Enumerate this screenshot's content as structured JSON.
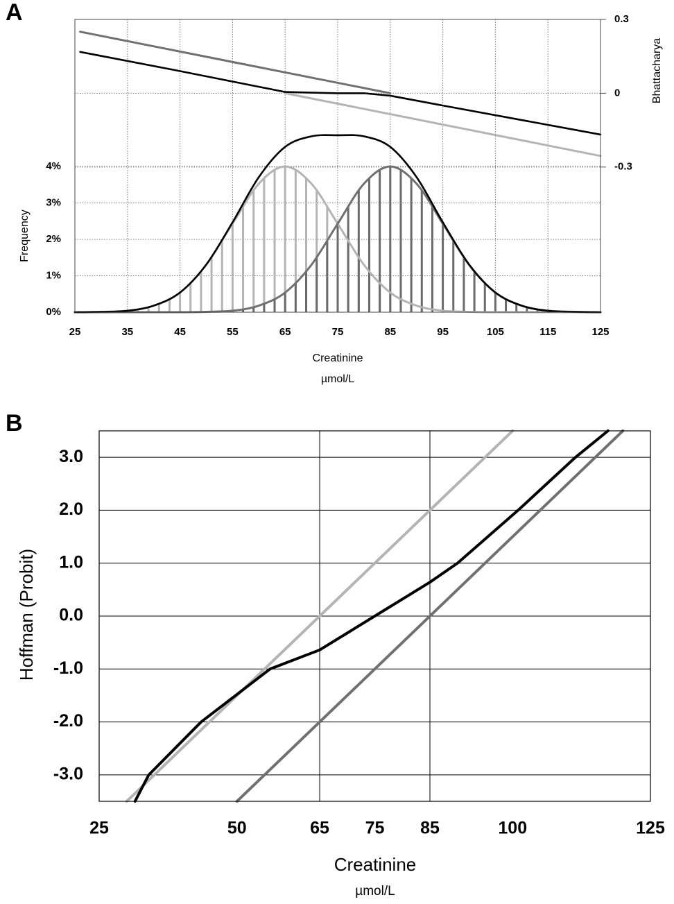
{
  "chart_data": [
    {
      "type": "distribution",
      "panel_label": "A",
      "xlabel": "Creatinine",
      "xunit": "µmol/L",
      "ylabel": "Frequency",
      "y2label": "Bhattacharya",
      "xlim": [
        25,
        125
      ],
      "xticks": [
        25,
        35,
        45,
        55,
        65,
        75,
        85,
        95,
        105,
        115,
        125
      ],
      "ylim": [
        0,
        8.04
      ],
      "yticks": [
        {
          "value": 0,
          "label": "0%"
        },
        {
          "value": 1,
          "label": "1%"
        },
        {
          "value": 2,
          "label": "2%"
        },
        {
          "value": 3,
          "label": "3%"
        },
        {
          "value": 4,
          "label": "4%"
        }
      ],
      "y2lim": [
        -0.89,
        0.3
      ],
      "y2ticks": [
        0.3,
        0,
        -0.3
      ],
      "grid": true,
      "bars": [
        {
          "color": "#b4b4b4",
          "x": [
            35,
            37,
            39,
            41,
            43,
            45,
            47,
            49,
            51,
            53,
            55,
            57,
            59,
            61,
            63,
            65,
            67,
            69,
            71,
            73,
            75,
            77,
            79,
            81,
            83,
            85,
            87,
            89,
            91,
            93,
            95
          ],
          "values": [
            0.04,
            0.08,
            0.14,
            0.23,
            0.36,
            0.54,
            0.79,
            1.11,
            1.5,
            1.95,
            2.43,
            2.9,
            3.34,
            3.69,
            3.92,
            4.0,
            3.92,
            3.69,
            3.34,
            2.9,
            2.43,
            1.95,
            1.5,
            1.11,
            0.79,
            0.54,
            0.36,
            0.23,
            0.14,
            0.08,
            0.04
          ]
        },
        {
          "color": "#6a6a6a",
          "x": [
            55,
            57,
            59,
            61,
            63,
            65,
            67,
            69,
            71,
            73,
            75,
            77,
            79,
            81,
            83,
            85,
            87,
            89,
            91,
            93,
            95,
            97,
            99,
            101,
            103,
            105,
            107,
            109,
            111,
            113,
            115
          ],
          "values": [
            0.04,
            0.08,
            0.14,
            0.23,
            0.36,
            0.54,
            0.79,
            1.11,
            1.5,
            1.95,
            2.43,
            2.9,
            3.34,
            3.69,
            3.92,
            4.0,
            3.92,
            3.69,
            3.34,
            2.9,
            2.43,
            1.95,
            1.5,
            1.11,
            0.79,
            0.54,
            0.36,
            0.23,
            0.14,
            0.08,
            0.04
          ]
        }
      ],
      "series": [
        {
          "color": "#b4b4b4",
          "x": [
            25,
            30,
            35,
            40,
            45,
            50,
            55,
            60,
            65,
            70,
            75,
            80,
            85,
            90,
            95,
            100,
            105,
            110,
            115,
            120,
            125
          ],
          "values": [
            0,
            0.01,
            0.04,
            0.18,
            0.54,
            1.3,
            2.43,
            3.53,
            4.0,
            3.53,
            2.43,
            1.3,
            0.54,
            0.18,
            0.04,
            0.01,
            0,
            0,
            0,
            0,
            0
          ]
        },
        {
          "color": "#707070",
          "x": [
            25,
            30,
            35,
            40,
            45,
            50,
            55,
            60,
            65,
            70,
            75,
            80,
            85,
            90,
            95,
            100,
            105,
            110,
            115,
            120,
            125
          ],
          "values": [
            0,
            0,
            0,
            0,
            0,
            0.01,
            0.04,
            0.18,
            0.54,
            1.3,
            2.43,
            3.53,
            4.0,
            3.53,
            2.43,
            1.3,
            0.54,
            0.18,
            0.04,
            0.01,
            0
          ]
        },
        {
          "color": "#000000",
          "x": [
            25,
            30,
            35,
            40,
            45,
            50,
            55,
            60,
            65,
            70,
            75,
            80,
            85,
            90,
            95,
            100,
            105,
            110,
            115,
            120,
            125
          ],
          "values": [
            0,
            0.01,
            0.04,
            0.18,
            0.54,
            1.31,
            2.47,
            3.71,
            4.54,
            4.83,
            4.86,
            4.83,
            4.54,
            3.71,
            2.47,
            1.31,
            0.54,
            0.18,
            0.04,
            0.01,
            0
          ]
        },
        {
          "color": "#707070",
          "axis": "y2",
          "x": [
            26,
            85
          ],
          "values": [
            0.25,
            0
          ]
        },
        {
          "color": "#b4b4b4",
          "axis": "y2",
          "x": [
            65,
            125
          ],
          "values": [
            0,
            -0.255
          ]
        },
        {
          "color": "#000000",
          "axis": "y2",
          "x": [
            26,
            45,
            65,
            75,
            80,
            85,
            95,
            125
          ],
          "values": [
            0.168,
            0.09,
            0.005,
            0,
            0,
            -0.01,
            -0.05,
            -0.168
          ]
        }
      ]
    },
    {
      "type": "line",
      "panel_label": "B",
      "xlabel": "Creatinine",
      "xunit": "µmol/L",
      "ylabel": "Hoffman (Probit)",
      "xlim": [
        25,
        125
      ],
      "xticks": [
        25,
        50,
        65,
        75,
        85,
        100,
        125
      ],
      "xgrid": [
        65,
        85
      ],
      "ylim": [
        -3.5,
        3.5
      ],
      "yticks": [
        {
          "value": 3,
          "label": "3.0"
        },
        {
          "value": 2,
          "label": "2.0"
        },
        {
          "value": 1,
          "label": "1.0"
        },
        {
          "value": 0,
          "label": "0.0"
        },
        {
          "value": -1,
          "label": "-1.0"
        },
        {
          "value": -2,
          "label": "-2.0"
        },
        {
          "value": -3,
          "label": "-3.0"
        }
      ],
      "grid": true,
      "series": [
        {
          "color": "#b4b4b4",
          "x": [
            30,
            100
          ],
          "values": [
            -3.5,
            3.5
          ]
        },
        {
          "color": "#707070",
          "x": [
            50,
            120
          ],
          "values": [
            -3.5,
            3.5
          ]
        },
        {
          "color": "#000000",
          "x": [
            31.5,
            34,
            43.5,
            56,
            65,
            75,
            85,
            90,
            101,
            111.4,
            117.3
          ],
          "values": [
            -3.5,
            -3,
            -2,
            -1,
            -0.64,
            0,
            0.64,
            1,
            2,
            3,
            3.5
          ]
        }
      ]
    }
  ]
}
